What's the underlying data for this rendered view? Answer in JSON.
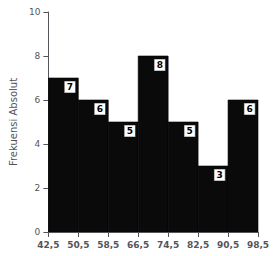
{
  "chart_data": {
    "type": "histogram",
    "bins": [
      {
        "value": 42.5,
        "label": "42,5"
      },
      {
        "value": 50.5,
        "label": "50,5"
      },
      {
        "value": 58.5,
        "label": "58,5"
      },
      {
        "value": 66.5,
        "label": "66,5"
      },
      {
        "value": 74.5,
        "label": "74,5"
      },
      {
        "value": 82.5,
        "label": "82,5"
      },
      {
        "value": 90.5,
        "label": "90,5"
      },
      {
        "value": 98.5,
        "label": "98,5"
      }
    ],
    "values": [
      7,
      6,
      5,
      8,
      5,
      3,
      6
    ],
    "color": "#0a0a0a",
    "ylabel": "Frekuensi Absolut",
    "ylim": [
      0,
      10
    ],
    "yticks": [
      0,
      2,
      4,
      6,
      8,
      10
    ],
    "data_labels": true,
    "grid": false
  }
}
